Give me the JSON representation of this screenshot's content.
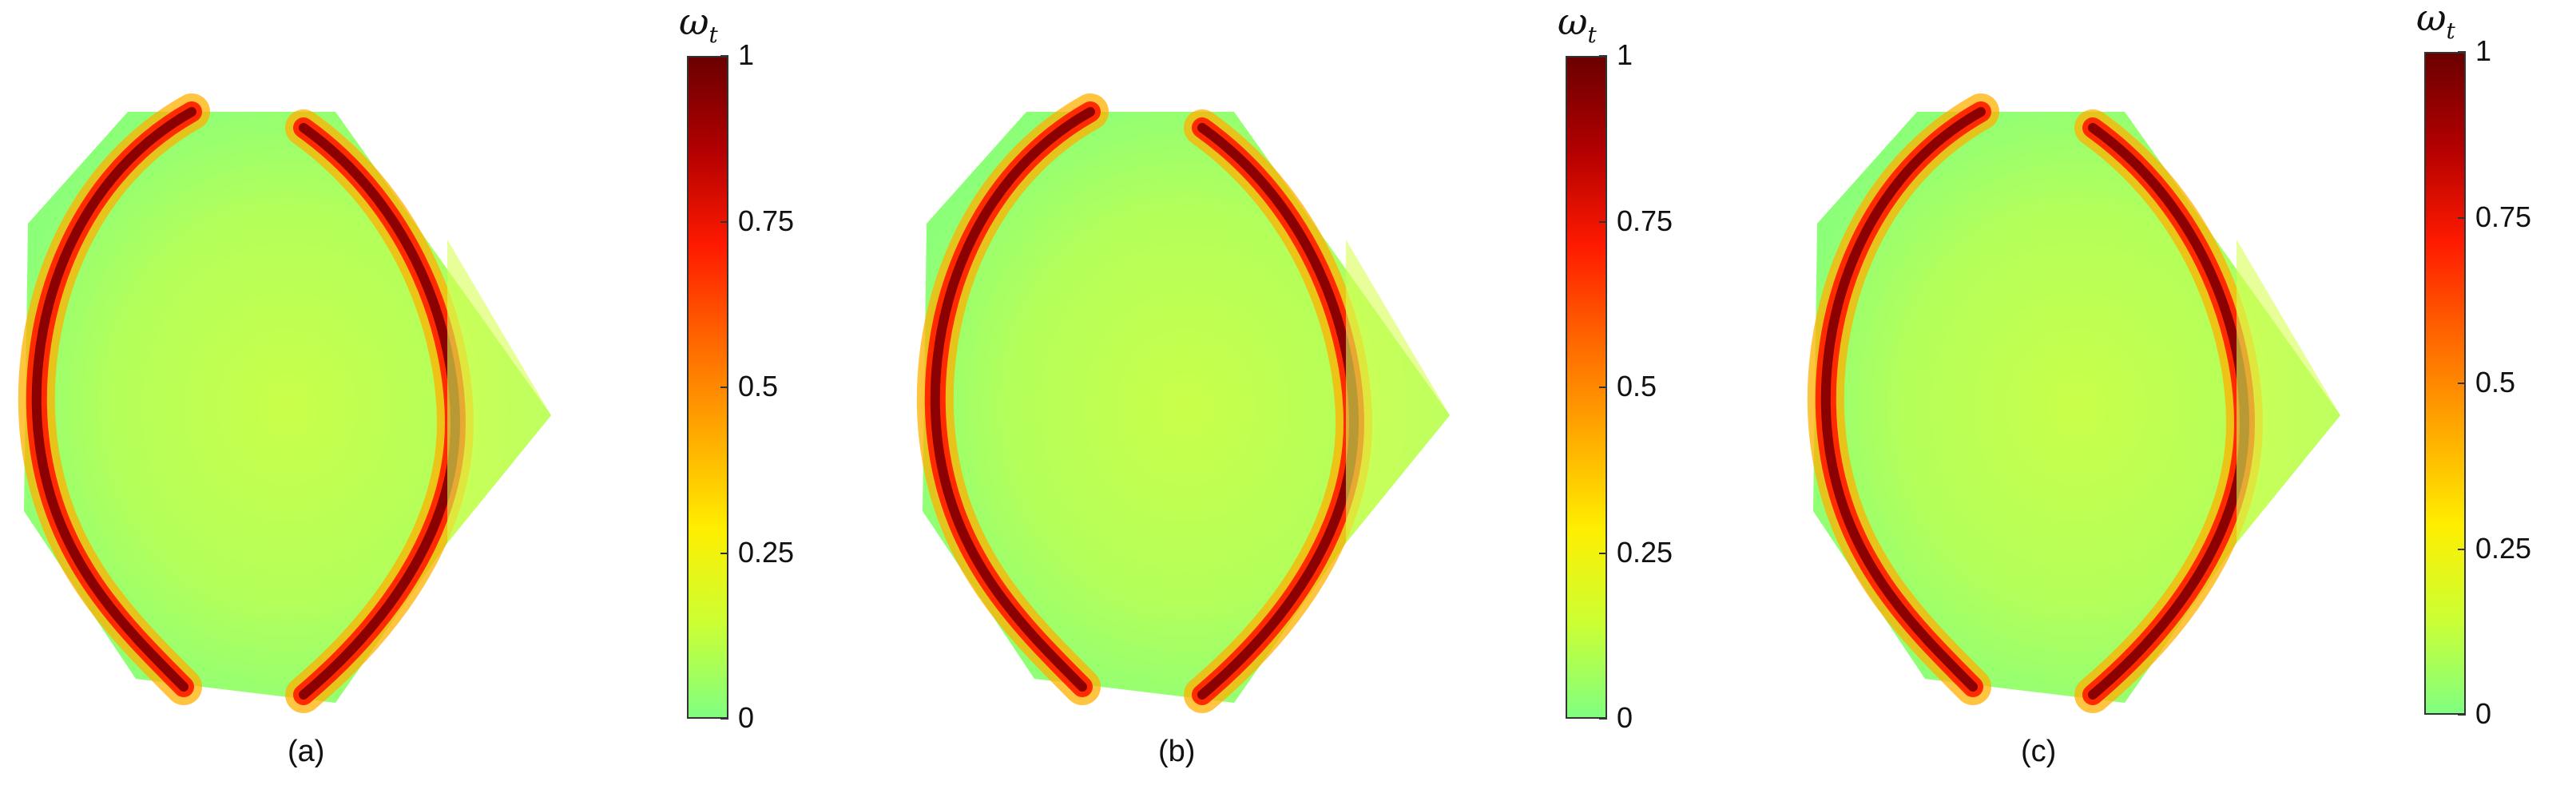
{
  "colorbar": {
    "symbol": "ω",
    "subscript": "t",
    "ticks": [
      "1",
      "0.75",
      "0.5",
      "0.25",
      "0"
    ],
    "tick_values": [
      1,
      0.75,
      0.5,
      0.25,
      0
    ],
    "colors": [
      "#6b0000",
      "#b30000",
      "#ff1a00",
      "#ff6600",
      "#ffaa00",
      "#ffee00",
      "#ccff33",
      "#80ff80"
    ]
  },
  "panels": [
    {
      "caption": "(a)"
    },
    {
      "caption": "(b)"
    },
    {
      "caption": "(c)"
    }
  ]
}
